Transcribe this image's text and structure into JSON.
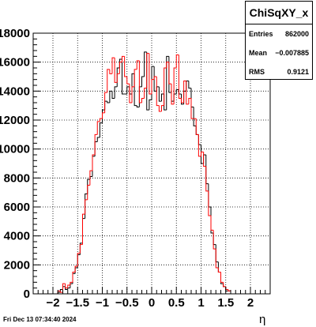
{
  "chart_data": {
    "type": "histogram",
    "title": "",
    "xlabel": "η",
    "ylabel": "",
    "xlim": [
      -2.4,
      2.4
    ],
    "ylim": [
      0,
      18000
    ],
    "x_ticks": [
      -2,
      -1.5,
      -1,
      -0.5,
      0,
      0.5,
      1,
      1.5,
      2
    ],
    "x_tick_labels": [
      "−2",
      "−1.5",
      "−1",
      "−0.5",
      "0",
      "0.5",
      "1",
      "1.5",
      "2"
    ],
    "y_ticks": [
      0,
      2000,
      4000,
      6000,
      8000,
      10000,
      12000,
      14000,
      16000,
      18000
    ],
    "y_tick_labels": [
      "0",
      "2000",
      "4000",
      "6000",
      "8000",
      "10000",
      "12000",
      "14000",
      "16000",
      "18000"
    ],
    "grid": true,
    "bin_width": 0.05,
    "bin_start": -2.4,
    "series": [
      {
        "color": "#000000",
        "values": [
          0,
          0,
          0,
          0,
          0,
          0,
          0,
          0,
          0,
          0,
          100,
          300,
          500,
          300,
          400,
          700,
          1400,
          1800,
          2700,
          3500,
          5200,
          6900,
          7900,
          8100,
          9500,
          10500,
          10800,
          11800,
          12700,
          13300,
          13200,
          14000,
          13500,
          14300,
          15600,
          16200,
          13800,
          13800,
          14300,
          13800,
          15200,
          13000,
          12900,
          14300,
          15000,
          16700,
          12700,
          13400,
          15700,
          14000,
          14300,
          13300,
          13800,
          12700,
          16400,
          13900,
          13300,
          13800,
          14100,
          13800,
          13100,
          14000,
          14700,
          14200,
          12900,
          11600,
          11000,
          10300,
          9000,
          9600,
          7600,
          6000,
          4200,
          3400,
          2200,
          1500,
          700,
          500,
          200,
          200,
          0,
          0,
          0,
          0,
          0,
          0,
          0,
          0,
          0,
          0,
          0,
          0,
          0,
          0,
          0,
          0
        ]
      },
      {
        "color": "#ff0000",
        "values": [
          0,
          0,
          0,
          0,
          0,
          0,
          0,
          0,
          0,
          0,
          200,
          100,
          700,
          400,
          600,
          800,
          1500,
          1900,
          2800,
          3400,
          5500,
          6500,
          7500,
          8500,
          9600,
          11000,
          11900,
          12100,
          12500,
          13900,
          15500,
          15200,
          16300,
          14600,
          15200,
          16000,
          16400,
          15000,
          14500,
          13200,
          14300,
          15500,
          16100,
          13200,
          13500,
          14200,
          16600,
          13800,
          14800,
          15000,
          13000,
          12600,
          13000,
          15600,
          16000,
          14500,
          13100,
          15600,
          16500,
          13500,
          13200,
          14700,
          13100,
          13500,
          12100,
          12100,
          11000,
          9500,
          9800,
          8800,
          7100,
          5400,
          4400,
          3100,
          1800,
          1500,
          800,
          500,
          300,
          200,
          0,
          0,
          0,
          0,
          0,
          0,
          0,
          0,
          0,
          0,
          0,
          0,
          0,
          0,
          0,
          0
        ]
      }
    ]
  },
  "stats": {
    "title": "ChiSqXY_x",
    "rows": [
      {
        "key": "Entries",
        "value": "862000"
      },
      {
        "key": "Mean",
        "value": "−0.007885"
      },
      {
        "key": "RMS",
        "value": "0.9121"
      }
    ]
  },
  "footer": {
    "timestamp": "Fri Dec 13 07:34:40 2024"
  }
}
